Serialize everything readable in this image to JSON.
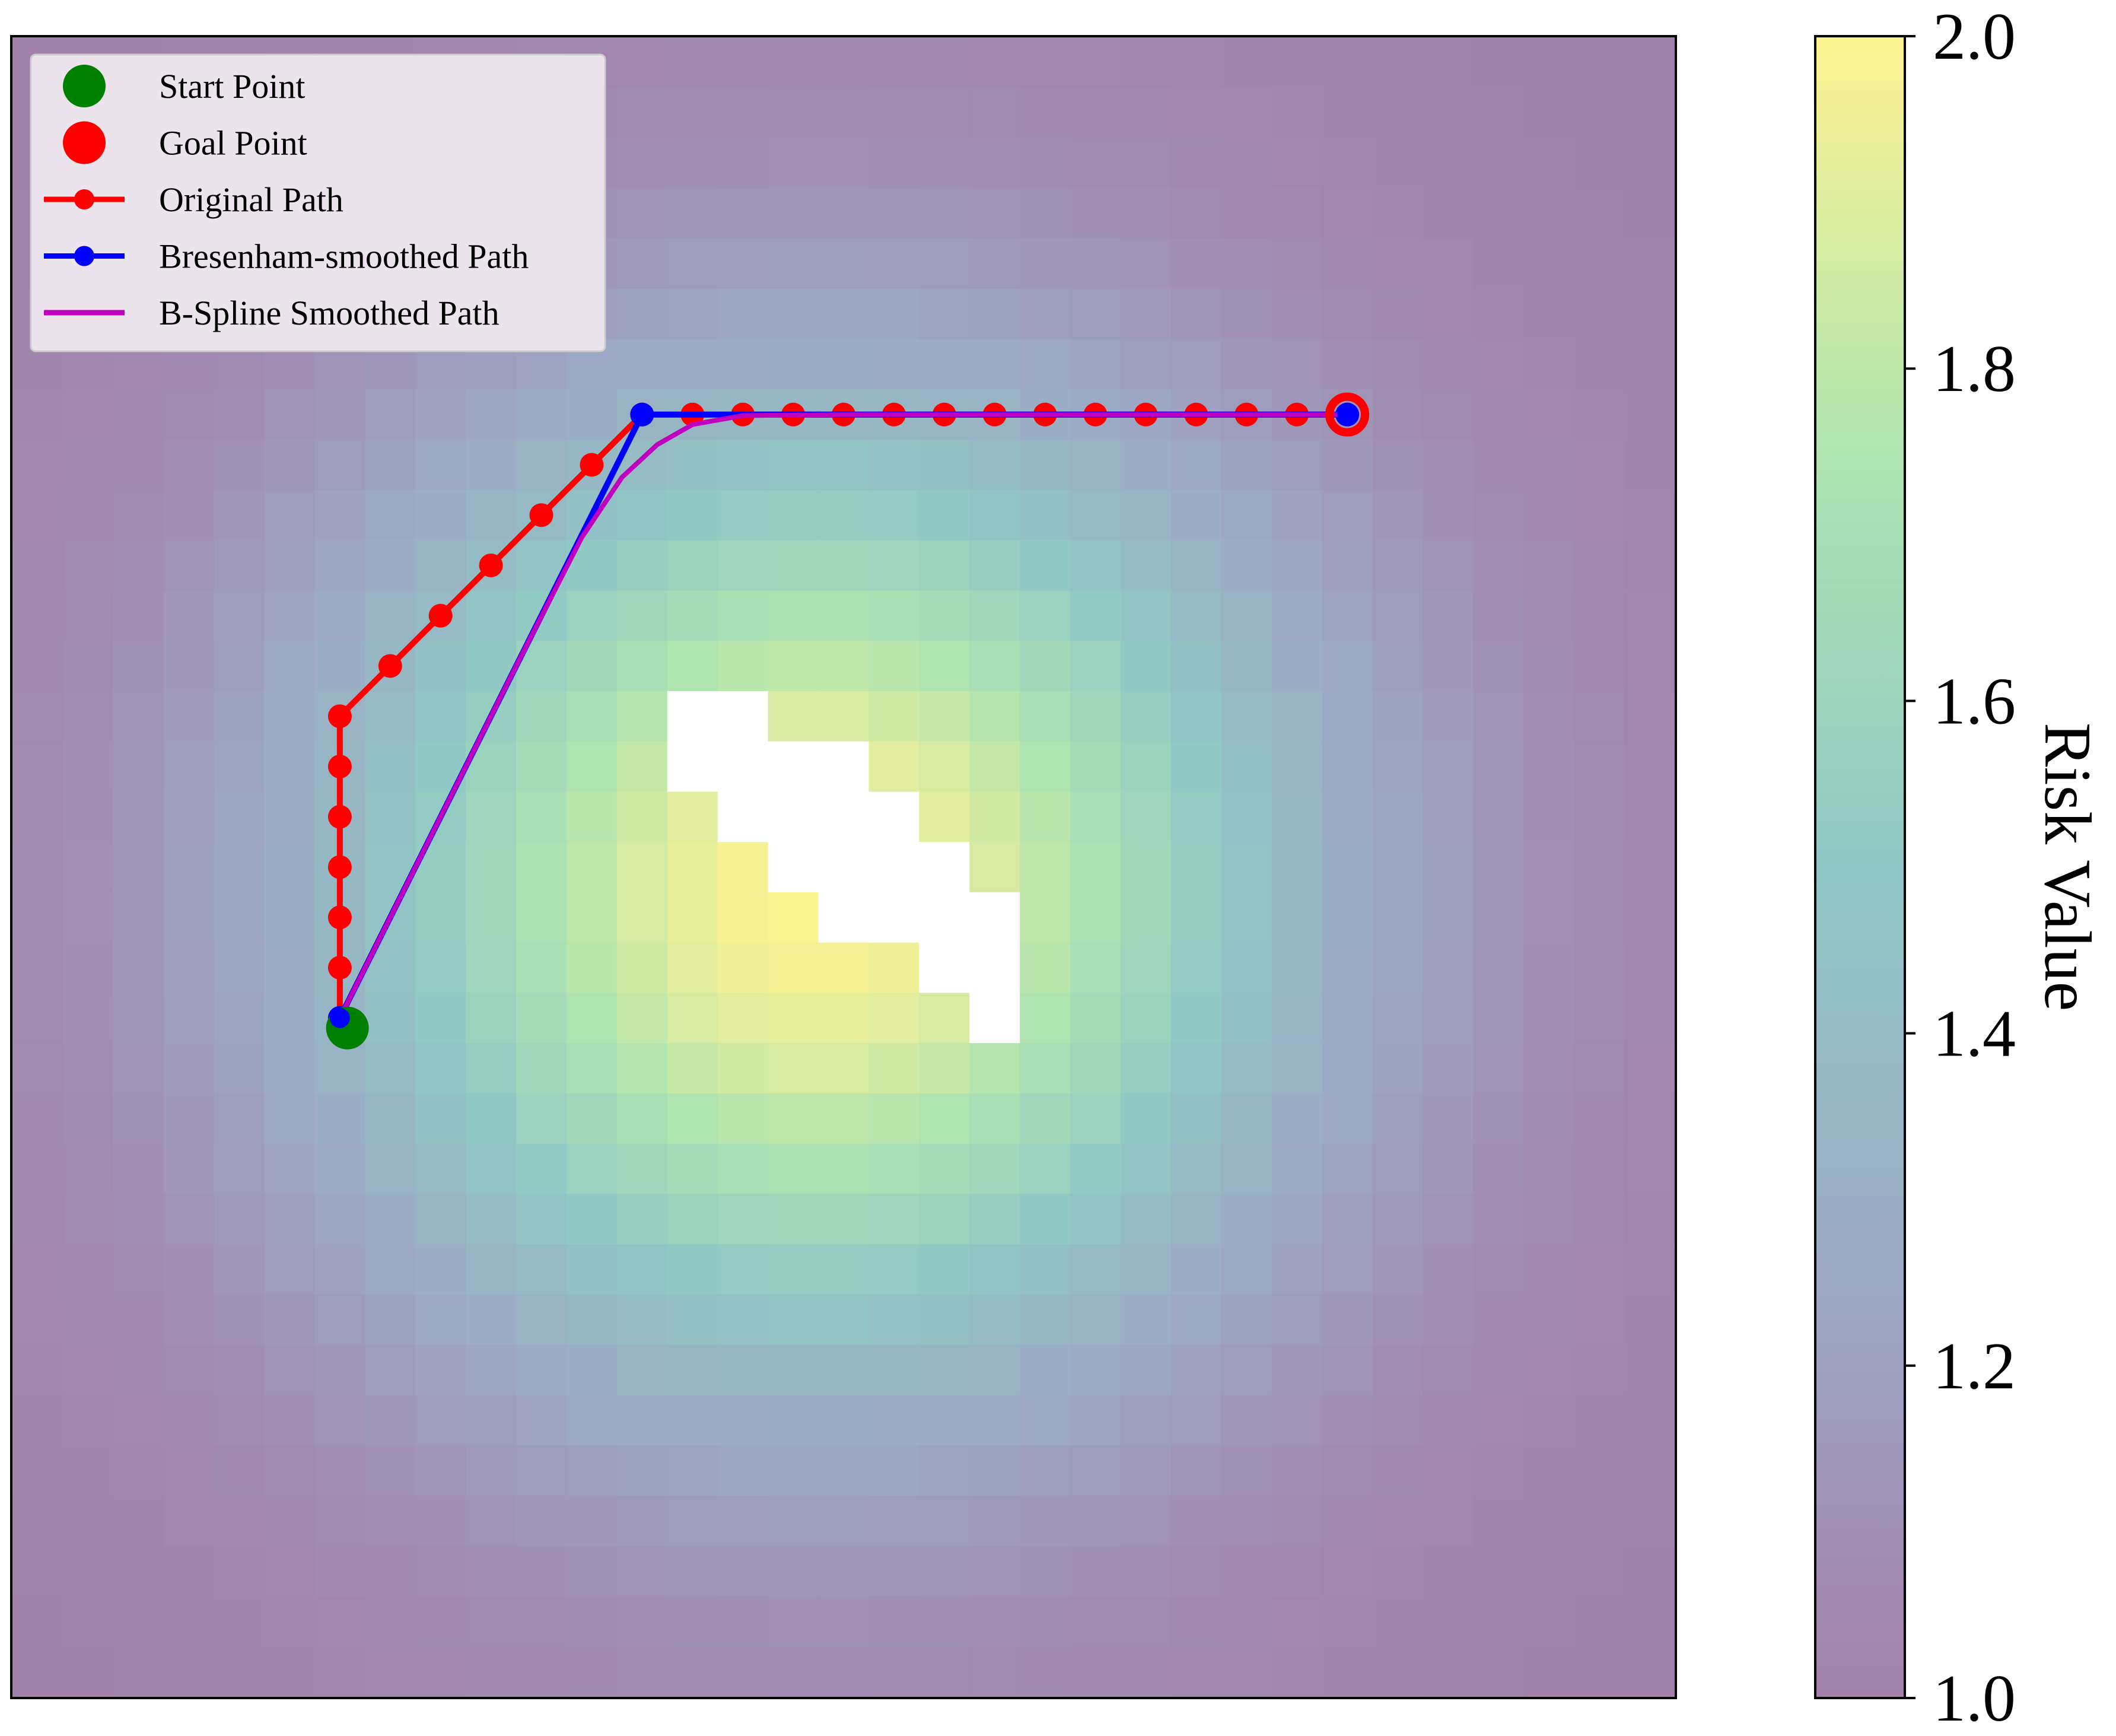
{
  "chart_data": [
    {
      "type": "heatmap",
      "title": "",
      "xlabel": "",
      "ylabel": "",
      "grid": false,
      "axes_ticks": false,
      "grid_size": [
        33,
        33
      ],
      "ylim": [
        32.5,
        -0.5
      ],
      "background_value": 1.0,
      "hotspot": {
        "center": [
          15.5,
          16.5
        ],
        "peak": 2.0,
        "spread": 6.8
      },
      "obstacle_cells": [
        [
          13,
          13
        ],
        [
          14,
          13
        ],
        [
          13,
          14
        ],
        [
          14,
          14
        ],
        [
          15,
          14
        ],
        [
          16,
          14
        ],
        [
          14,
          15
        ],
        [
          15,
          15
        ],
        [
          16,
          15
        ],
        [
          17,
          15
        ],
        [
          15,
          16
        ],
        [
          16,
          16
        ],
        [
          17,
          16
        ],
        [
          18,
          16
        ],
        [
          16,
          17
        ],
        [
          17,
          17
        ],
        [
          18,
          17
        ],
        [
          19,
          17
        ],
        [
          18,
          18
        ],
        [
          19,
          18
        ],
        [
          19,
          19
        ]
      ],
      "obstacle_color": "#ffffff",
      "overlay_alpha": 0.5,
      "series": [
        {
          "name": "Original Path",
          "kind": "line+markers",
          "color": "#ff0000",
          "points": [
            [
              6,
              19
            ],
            [
              6,
              18
            ],
            [
              6,
              17
            ],
            [
              6,
              16
            ],
            [
              6,
              15
            ],
            [
              6,
              14
            ],
            [
              6,
              13
            ],
            [
              7,
              12
            ],
            [
              8,
              11
            ],
            [
              9,
              10
            ],
            [
              10,
              9
            ],
            [
              11,
              8
            ],
            [
              12,
              7
            ],
            [
              13,
              7
            ],
            [
              14,
              7
            ],
            [
              15,
              7
            ],
            [
              16,
              7
            ],
            [
              17,
              7
            ],
            [
              18,
              7
            ],
            [
              19,
              7
            ],
            [
              20,
              7
            ],
            [
              21,
              7
            ],
            [
              22,
              7
            ],
            [
              23,
              7
            ],
            [
              24,
              7
            ],
            [
              25,
              7
            ],
            [
              26,
              7
            ]
          ]
        },
        {
          "name": "Bresenham-smoothed Path",
          "kind": "line+markers",
          "color": "#0000ff",
          "points": [
            [
              6,
              19
            ],
            [
              12,
              7
            ],
            [
              26,
              7
            ]
          ]
        },
        {
          "name": "B-Spline Smoothed Path",
          "kind": "line",
          "color": "#bf00bf",
          "points": [
            [
              6,
              19
            ],
            [
              7.2,
              16.6
            ],
            [
              8.4,
              14.2
            ],
            [
              9.6,
              11.8
            ],
            [
              10.8,
              9.45
            ],
            [
              11.6,
              8.25
            ],
            [
              12.3,
              7.6
            ],
            [
              13.0,
              7.2
            ],
            [
              14.0,
              7.02
            ],
            [
              16,
              7
            ],
            [
              20,
              7
            ],
            [
              24,
              7
            ],
            [
              26,
              7
            ]
          ]
        }
      ],
      "markers": [
        {
          "name": "Start Point",
          "point": [
            6.15,
            19.2
          ],
          "color": "#008000"
        },
        {
          "name": "Goal Point",
          "point": [
            26,
            7
          ],
          "color": "#ff0000"
        }
      ],
      "legend": {
        "position": "upper left",
        "entries": [
          {
            "label": "Start Point",
            "style": "dot",
            "color": "#008000"
          },
          {
            "label": "Goal Point",
            "style": "dot",
            "color": "#ff0000"
          },
          {
            "label": "Original Path",
            "style": "line+marker",
            "color": "#ff0000"
          },
          {
            "label": "Bresenham-smoothed Path",
            "style": "line+marker",
            "color": "#0000ff"
          },
          {
            "label": "B-Spline Smoothed Path",
            "style": "line",
            "color": "#bf00bf"
          }
        ]
      },
      "colorbar": {
        "label": "Risk Value",
        "range": [
          1.0,
          2.0
        ],
        "ticks": [
          "1.0",
          "1.2",
          "1.4",
          "1.6",
          "1.8",
          "2.0"
        ],
        "colormap": "viridis"
      }
    }
  ]
}
